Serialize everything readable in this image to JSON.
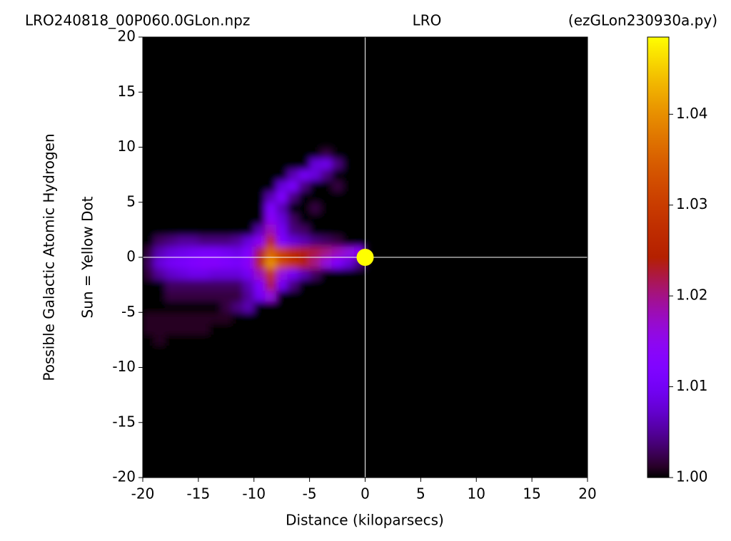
{
  "chart_data": {
    "type": "heatmap",
    "title_left": "LRO240818_00P060.0GLon.npz",
    "title_center": "LRO",
    "title_right": "(ezGLon230930a.py)",
    "xlabel": "Distance (kiloparsecs)",
    "ylabel": [
      "Possible Galactic Atomic Hydrogen",
      "Sun = Yellow Dot"
    ],
    "xlim": [
      -20,
      20
    ],
    "ylim": [
      -20,
      20
    ],
    "xticks": [
      -20,
      -15,
      -10,
      -5,
      0,
      5,
      10,
      15,
      20
    ],
    "yticks": [
      -20,
      -15,
      -10,
      -5,
      0,
      5,
      10,
      15,
      20
    ],
    "colormap": "gnuplot",
    "zlim": [
      1.0,
      1.0485
    ],
    "zticks": [
      {
        "value": 1.0,
        "label": "1.00"
      },
      1.01,
      1.02,
      1.03,
      1.04
    ],
    "xbins": [
      -20,
      -19,
      -18,
      -17,
      -16,
      -15,
      -14,
      -13,
      -12,
      -11,
      -10,
      -9,
      -8,
      -7,
      -6,
      -5,
      -4,
      -3,
      -2,
      -1,
      0
    ],
    "ybins": [
      -10,
      -9,
      -8,
      -7,
      -6,
      -5,
      -4,
      -3,
      -2,
      -1,
      0,
      1,
      2,
      3,
      4,
      5,
      6,
      7,
      8,
      9,
      10
    ],
    "z": [
      [
        1,
        1,
        1,
        1,
        1,
        1,
        1,
        1,
        1,
        1,
        1,
        1,
        1,
        1,
        1,
        1,
        1,
        1,
        1,
        1
      ],
      [
        1,
        1,
        1,
        1,
        1,
        1,
        1,
        1,
        1,
        1,
        1,
        1,
        1,
        1,
        1,
        1,
        1,
        1,
        1,
        1
      ],
      [
        1,
        1.001,
        1,
        1,
        1,
        1,
        1,
        1,
        1,
        1,
        1,
        1,
        1,
        1,
        1,
        1,
        1,
        1,
        1,
        1
      ],
      [
        1.001,
        1.001,
        1.001,
        1.001,
        1.001,
        1.001,
        1,
        1,
        1,
        1,
        1,
        1,
        1,
        1,
        1,
        1,
        1,
        1,
        1,
        1
      ],
      [
        1.001,
        1.001,
        1.001,
        1.001,
        1.001,
        1.001,
        1.001,
        1.001,
        1,
        1,
        1,
        1,
        1,
        1,
        1,
        1,
        1,
        1,
        1,
        1
      ],
      [
        1,
        1,
        1,
        1,
        1,
        1,
        1,
        1.002,
        1.004,
        1.006,
        1,
        1,
        1,
        1,
        1,
        1,
        1,
        1,
        1,
        1
      ],
      [
        1,
        1,
        1.002,
        1.002,
        1.002,
        1.002,
        1.002,
        1.002,
        1.002,
        1.005,
        1.01,
        1.016,
        1,
        1,
        1,
        1,
        1,
        1,
        1,
        1
      ],
      [
        1,
        1,
        1.003,
        1.003,
        1.003,
        1.003,
        1.003,
        1.003,
        1.003,
        1.006,
        1.012,
        1.022,
        1.01,
        1.004,
        1,
        1,
        1,
        1,
        1,
        1
      ],
      [
        1.002,
        1.005,
        1.007,
        1.008,
        1.009,
        1.009,
        1.008,
        1.008,
        1.008,
        1.01,
        1.018,
        1.028,
        1.016,
        1.01,
        1.006,
        1.003,
        1,
        1,
        1,
        1
      ],
      [
        1.003,
        1.008,
        1.01,
        1.011,
        1.012,
        1.013,
        1.013,
        1.012,
        1.011,
        1.014,
        1.025,
        1.04,
        1.032,
        1.028,
        1.024,
        1.02,
        1.016,
        1.012,
        1.008,
        1.004
      ],
      [
        1.002,
        1.006,
        1.008,
        1.009,
        1.01,
        1.011,
        1.011,
        1.01,
        1.009,
        1.012,
        1.022,
        1.035,
        1.03,
        1.026,
        1.024,
        1.022,
        1.02,
        1.018,
        1.016,
        1.014
      ],
      [
        1,
        1.003,
        1.004,
        1.005,
        1.005,
        1.004,
        1.004,
        1.004,
        1.005,
        1.008,
        1.014,
        1.025,
        1.012,
        1.008,
        1.006,
        1.004,
        1.003,
        1.002,
        1,
        1
      ],
      [
        1,
        1,
        1,
        1,
        1,
        1,
        1,
        1,
        1,
        1,
        1.006,
        1.018,
        1.01,
        1.004,
        1.003,
        1,
        1,
        1,
        1,
        1
      ],
      [
        1,
        1,
        1,
        1,
        1,
        1,
        1,
        1,
        1,
        1,
        1,
        1.014,
        1.008,
        1.003,
        1,
        1,
        1,
        1,
        1,
        1
      ],
      [
        1,
        1,
        1,
        1,
        1,
        1,
        1,
        1,
        1,
        1,
        1,
        1.012,
        1.006,
        1,
        1,
        1.002,
        1,
        1,
        1,
        1
      ],
      [
        1,
        1,
        1,
        1,
        1,
        1,
        1,
        1,
        1,
        1,
        1,
        1.006,
        1.012,
        1.004,
        1,
        1,
        1,
        1,
        1,
        1
      ],
      [
        1,
        1,
        1,
        1,
        1,
        1,
        1,
        1,
        1,
        1,
        1,
        1,
        1.008,
        1.011,
        1.004,
        1,
        1,
        1.002,
        1,
        1
      ],
      [
        1,
        1,
        1,
        1,
        1,
        1,
        1,
        1,
        1,
        1,
        1,
        1,
        1,
        1.006,
        1.01,
        1.008,
        1.004,
        1,
        1,
        1
      ],
      [
        1,
        1,
        1,
        1,
        1,
        1,
        1,
        1,
        1,
        1,
        1,
        1,
        1,
        1,
        1,
        1.008,
        1.009,
        1.004,
        1,
        1
      ],
      [
        1,
        1,
        1,
        1,
        1,
        1,
        1,
        1,
        1,
        1,
        1,
        1,
        1,
        1,
        1,
        1,
        1.002,
        1,
        1,
        1
      ]
    ],
    "sun": {
      "x": 0,
      "y": 0,
      "color": "#ffff00"
    }
  }
}
